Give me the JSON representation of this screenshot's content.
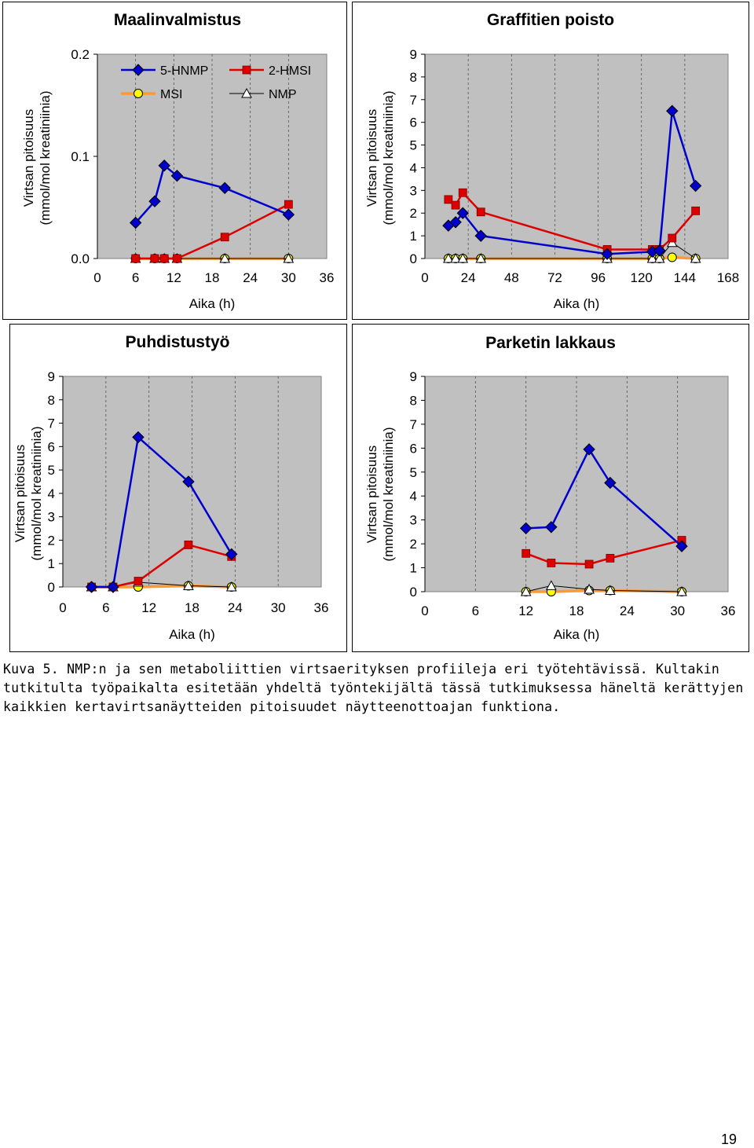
{
  "chart_data": [
    {
      "type": "line",
      "title": "Maalinvalmistus",
      "xlabel": "Aika (h)",
      "ylabel": [
        "Virtsan pitoisuus",
        "(mmol/mol kreatiniinia)"
      ],
      "xlim": [
        0,
        36
      ],
      "xticks": [
        "0",
        "6",
        "12",
        "18",
        "24",
        "30",
        "36"
      ],
      "xtick_values": [
        0,
        6,
        12,
        18,
        24,
        30,
        36
      ],
      "ylim": [
        0,
        0.2
      ],
      "yticks": [
        "0.0",
        "0.1",
        "0.2"
      ],
      "ytick_values": [
        0,
        0.1,
        0.2
      ],
      "legend": [
        "5-HNMP",
        "2-HMSI",
        "MSI",
        "NMP"
      ],
      "series": [
        {
          "name": "5-HNMP",
          "x": [
            6,
            9,
            10.5,
            12.5,
            20,
            30
          ],
          "y": [
            0.035,
            0.056,
            0.091,
            0.081,
            0.069,
            0.043
          ]
        },
        {
          "name": "2-HMSI",
          "x": [
            6,
            9,
            10.5,
            12.5,
            20,
            30
          ],
          "y": [
            0,
            0,
            0,
            0,
            0.021,
            0.053
          ]
        },
        {
          "name": "MSI",
          "x": [
            6,
            9,
            10.5,
            12.5,
            20,
            30
          ],
          "y": [
            0,
            0,
            0,
            0,
            0,
            0
          ]
        },
        {
          "name": "NMP",
          "x": [
            6,
            9,
            10.5,
            12.5,
            20,
            30
          ],
          "y": [
            0,
            0,
            0,
            0,
            0,
            0
          ]
        }
      ]
    },
    {
      "type": "line",
      "title": "Graffitien poisto",
      "xlabel": "Aika (h)",
      "ylabel": [
        "Virtsan pitoisuus",
        "(mmol/mol kreatiniinia)"
      ],
      "xlim": [
        0,
        168
      ],
      "xticks": [
        "0",
        "24",
        "48",
        "72",
        "96",
        "120",
        "144",
        "168"
      ],
      "xtick_values": [
        0,
        24,
        48,
        72,
        96,
        120,
        144,
        168
      ],
      "ylim": [
        0,
        9
      ],
      "yticks": [
        "0",
        "1",
        "2",
        "3",
        "4",
        "5",
        "6",
        "7",
        "8",
        "9"
      ],
      "ytick_values": [
        0,
        1,
        2,
        3,
        4,
        5,
        6,
        7,
        8,
        9
      ],
      "series": [
        {
          "name": "5-HNMP",
          "x": [
            13,
            17,
            21,
            31,
            101,
            126,
            130,
            137,
            150
          ],
          "y": [
            1.45,
            1.6,
            2.0,
            1.0,
            0.2,
            0.3,
            0.35,
            6.5,
            3.2
          ]
        },
        {
          "name": "2-HMSI",
          "x": [
            13,
            17,
            21,
            31,
            101,
            126,
            130,
            137,
            150
          ],
          "y": [
            2.6,
            2.35,
            2.9,
            2.05,
            0.4,
            0.4,
            0.4,
            0.9,
            2.1
          ]
        },
        {
          "name": "MSI",
          "x": [
            13,
            17,
            21,
            31,
            101,
            126,
            130,
            137,
            150
          ],
          "y": [
            0,
            0,
            0,
            0,
            0,
            0,
            0,
            0.05,
            0
          ]
        },
        {
          "name": "NMP",
          "x": [
            13,
            17,
            21,
            31,
            101,
            126,
            130,
            137,
            150
          ],
          "y": [
            0,
            0,
            0,
            0,
            0,
            0,
            0,
            0.7,
            0
          ]
        }
      ]
    },
    {
      "type": "line",
      "title": "Puhdistustyö",
      "xlabel": "Aika (h)",
      "ylabel": [
        "Virtsan pitoisuus",
        "(mmol/mol kreatiniinia)"
      ],
      "xlim": [
        0,
        36
      ],
      "xticks": [
        "0",
        "6",
        "12",
        "18",
        "24",
        "30",
        "36"
      ],
      "xtick_values": [
        0,
        6,
        12,
        18,
        24,
        30,
        36
      ],
      "ylim": [
        0,
        9
      ],
      "yticks": [
        "0",
        "1",
        "2",
        "3",
        "4",
        "5",
        "6",
        "7",
        "8",
        "9"
      ],
      "ytick_values": [
        0,
        1,
        2,
        3,
        4,
        5,
        6,
        7,
        8,
        9
      ],
      "series": [
        {
          "name": "5-HNMP",
          "x": [
            4,
            7,
            10.5,
            17.5,
            23.5
          ],
          "y": [
            0,
            0,
            6.4,
            4.5,
            1.4
          ]
        },
        {
          "name": "2-HMSI",
          "x": [
            4,
            7,
            10.5,
            17.5,
            23.5
          ],
          "y": [
            0,
            0,
            0.25,
            1.8,
            1.3
          ]
        },
        {
          "name": "MSI",
          "x": [
            4,
            7,
            10.5,
            17.5,
            23.5
          ],
          "y": [
            0,
            0,
            0,
            0.05,
            0
          ]
        },
        {
          "name": "NMP",
          "x": [
            4,
            7,
            10.5,
            17.5,
            23.5
          ],
          "y": [
            0,
            0,
            0.2,
            0.05,
            0
          ]
        }
      ]
    },
    {
      "type": "line",
      "title": "Parketin lakkaus",
      "xlabel": "Aika (h)",
      "ylabel": [
        "Virtsan pitoisuus",
        "(mmol/mol kreatiniinia)"
      ],
      "xlim": [
        0,
        36
      ],
      "xticks": [
        "0",
        "6",
        "12",
        "18",
        "24",
        "30",
        "36"
      ],
      "xtick_values": [
        0,
        6,
        12,
        18,
        24,
        30,
        36
      ],
      "ylim": [
        0,
        9
      ],
      "yticks": [
        "0",
        "1",
        "2",
        "3",
        "4",
        "5",
        "6",
        "7",
        "8",
        "9"
      ],
      "ytick_values": [
        0,
        1,
        2,
        3,
        4,
        5,
        6,
        7,
        8,
        9
      ],
      "series": [
        {
          "name": "5-HNMP",
          "x": [
            12,
            15,
            19.5,
            22,
            30.5
          ],
          "y": [
            2.65,
            2.7,
            5.95,
            4.55,
            1.9
          ]
        },
        {
          "name": "2-HMSI",
          "x": [
            12,
            15,
            19.5,
            22,
            30.5
          ],
          "y": [
            1.6,
            1.2,
            1.15,
            1.4,
            2.15
          ]
        },
        {
          "name": "MSI",
          "x": [
            12,
            15,
            19.5,
            22,
            30.5
          ],
          "y": [
            0,
            0,
            0.05,
            0.05,
            0
          ]
        },
        {
          "name": "NMP",
          "x": [
            12,
            15,
            19.5,
            22,
            30.5
          ],
          "y": [
            0,
            0.25,
            0.1,
            0.05,
            0
          ]
        }
      ]
    }
  ],
  "colors": {
    "5-HNMP": "#0000cc",
    "2-HMSI": "#dd0000",
    "MSI": "#ff9933",
    "MSI_marker": "#ffff00",
    "NMP": "#000000",
    "plot_bg": "#c0c0c0"
  },
  "caption": {
    "lines": [
      "Kuva 5. NMP:n ja sen metaboliittien virtsaerityksen profiileja eri työtehtävissä. Kultakin",
      "tutkitulta työpaikalta esitetään yhdeltä työntekijältä tässä tutkimuksessa häneltä kerättyjen",
      "kaikkien kertavirtsanäytteiden pitoisuudet näytteenottoajan funktiona."
    ]
  },
  "page_number": "19"
}
